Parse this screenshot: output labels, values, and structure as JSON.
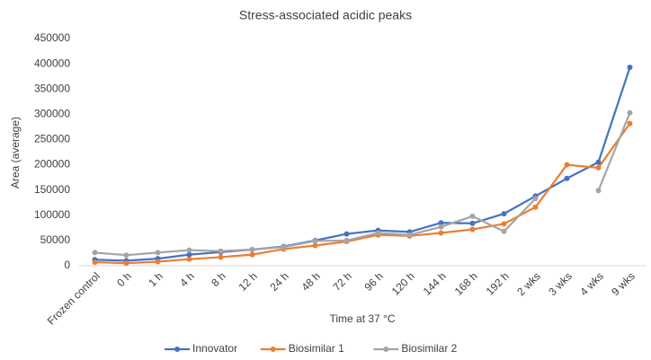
{
  "chart_data": {
    "type": "line",
    "title": "Stress-associated acidic peaks",
    "x_label": "Time at 37 °C",
    "y_label": "Area (average)",
    "categories": [
      "Frozen control",
      "0 h",
      "1 h",
      "4 h",
      "8 h",
      "12 h",
      "24 h",
      "48 h",
      "72 h",
      "96 h",
      "120 h",
      "144 h",
      "168 h",
      "192 h",
      "2 wks",
      "3 wks",
      "4 wks",
      "9 wks"
    ],
    "series": [
      {
        "name": "Innovator",
        "color": "#4472c4",
        "values": [
          12000,
          10000,
          14000,
          22000,
          27000,
          32000,
          38000,
          50000,
          63000,
          70000,
          67000,
          85000,
          84000,
          103000,
          138000,
          173000,
          205000,
          393000
        ]
      },
      {
        "name": "Biosimilar 1",
        "color": "#ed7d31",
        "values": [
          7000,
          5000,
          8000,
          13000,
          17000,
          22000,
          33000,
          40000,
          48000,
          61000,
          59000,
          65000,
          72000,
          83000,
          116000,
          200000,
          194000,
          282000
        ]
      },
      {
        "name": "Biosimilar 2",
        "color": "#a5a5a5",
        "values": [
          26000,
          21000,
          26000,
          31000,
          29000,
          32000,
          37000,
          49000,
          50000,
          65000,
          61000,
          77000,
          98000,
          68000,
          133000,
          null,
          149000,
          303000
        ]
      }
    ],
    "ylim": [
      0,
      450000
    ],
    "yticks": [
      0,
      50000,
      100000,
      150000,
      200000,
      250000,
      300000,
      350000,
      400000,
      450000
    ],
    "grid": false,
    "legend": "bottom"
  }
}
